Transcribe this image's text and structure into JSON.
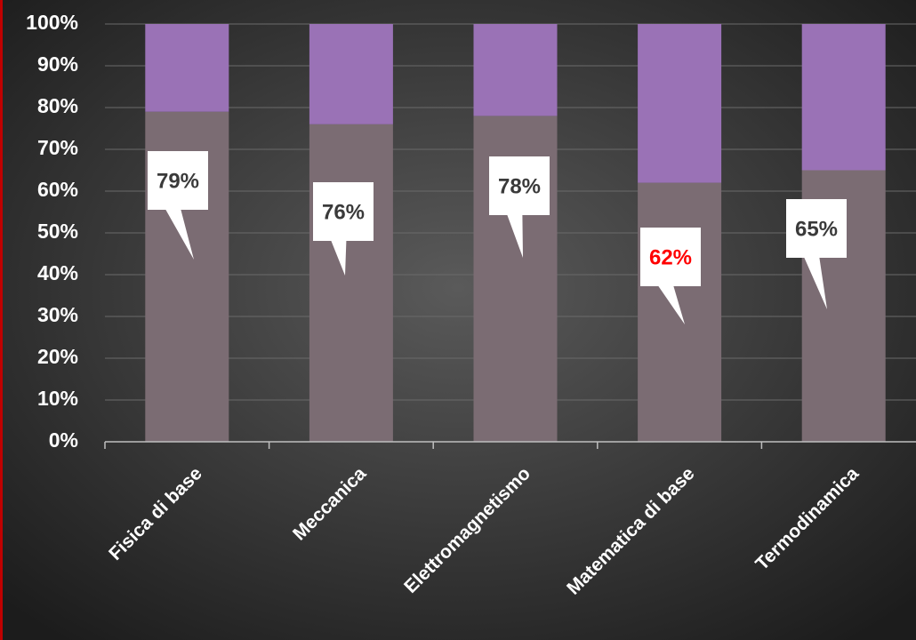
{
  "chart_data": {
    "type": "stacked_bar_100",
    "categories": [
      "Fisica di base",
      "Meccanica",
      "Elettromagnetismo",
      "Matematica di base",
      "Termodinamica"
    ],
    "series": [
      {
        "color": "#7b6c73",
        "values": [
          79,
          76,
          78,
          62,
          65
        ],
        "value_labels": [
          "79%",
          "76%",
          "78%",
          "62%",
          "65%"
        ],
        "value_label_colors": [
          "#3a3a3a",
          "#3a3a3a",
          "#3a3a3a",
          "#ff0000",
          "#3a3a3a"
        ]
      },
      {
        "color": "#9a72b6",
        "values": [
          21,
          24,
          22,
          38,
          35
        ]
      }
    ],
    "ylim": [
      0,
      100
    ],
    "yticks": [
      {
        "value": 0,
        "label": "0%"
      },
      {
        "value": 10,
        "label": "10%"
      },
      {
        "value": 20,
        "label": "20%"
      },
      {
        "value": 30,
        "label": "30%"
      },
      {
        "value": 40,
        "label": "40%"
      },
      {
        "value": 50,
        "label": "50%"
      },
      {
        "value": 60,
        "label": "60%"
      },
      {
        "value": 70,
        "label": "70%"
      },
      {
        "value": 80,
        "label": "80%"
      },
      {
        "value": 90,
        "label": "90%"
      },
      {
        "value": 100,
        "label": "100%"
      }
    ],
    "grid": true
  }
}
